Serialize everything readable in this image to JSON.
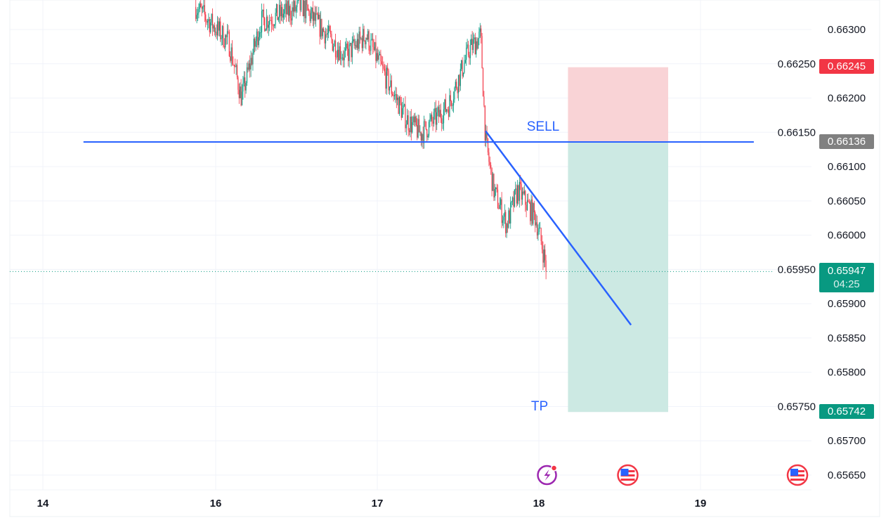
{
  "chart_data": {
    "type": "candlestick",
    "title": "",
    "x_ticks": [
      {
        "day": 14,
        "label": "14"
      },
      {
        "day": 16,
        "label": "16"
      },
      {
        "day": 17,
        "label": "17"
      },
      {
        "day": 18,
        "label": "18"
      },
      {
        "day": 19,
        "label": "19"
      }
    ],
    "y_ticks": [
      "0.66300",
      "0.66250",
      "0.66200",
      "0.66150",
      "0.66100",
      "0.66050",
      "0.66000",
      "0.65950",
      "0.65900",
      "0.65850",
      "0.65800",
      "0.65750",
      "0.65700",
      "0.65650"
    ],
    "ylim": [
      0.65625,
      0.66343
    ],
    "price_path": [
      [
        15.77,
        0.66333
      ],
      [
        16.08,
        0.66282
      ],
      [
        16.16,
        0.662
      ],
      [
        16.28,
        0.66312
      ],
      [
        16.54,
        0.66333
      ],
      [
        16.8,
        0.66261
      ],
      [
        16.93,
        0.66292
      ],
      [
        17.03,
        0.66241
      ],
      [
        17.18,
        0.66169
      ],
      [
        17.27,
        0.66148
      ],
      [
        17.44,
        0.66189
      ],
      [
        17.57,
        0.66271
      ],
      [
        17.64,
        0.6629
      ],
      [
        17.67,
        0.66138
      ],
      [
        17.72,
        0.66066
      ],
      [
        17.8,
        0.66015
      ],
      [
        17.87,
        0.66066
      ],
      [
        17.98,
        0.66025
      ],
      [
        18.02,
        0.65984
      ],
      [
        18.05,
        0.65947
      ]
    ],
    "sell_line": {
      "label": "SELL",
      "price": 0.66136,
      "from_day": 14.47,
      "to_day": 19.33,
      "color": "#2962ff"
    },
    "trend_line": {
      "from": [
        17.67,
        0.66152
      ],
      "to": [
        18.57,
        0.65869
      ],
      "color": "#2962ff"
    },
    "position": {
      "from_day": 18.18,
      "to_day": 18.8,
      "stop": 0.66245,
      "entry": 0.66136,
      "target": 0.65742,
      "tp_label": "TP"
    },
    "tags": {
      "stop": "0.66245",
      "entry": "0.66136",
      "last": "0.65947",
      "countdown": "04:25",
      "target": "0.65742"
    },
    "last_price": 0.65947,
    "colors": {
      "up": "#089981",
      "down": "#f23645",
      "stop_fill": "#f9d3d6",
      "target_fill": "#cce9e3",
      "entry_tag": "#808080"
    },
    "events": [
      {
        "day": 18.05,
        "type": "lightning-icon"
      },
      {
        "day": 18.55,
        "type": "us-flag-icon"
      },
      {
        "day": 19.6,
        "type": "us-flag-icon"
      }
    ]
  }
}
